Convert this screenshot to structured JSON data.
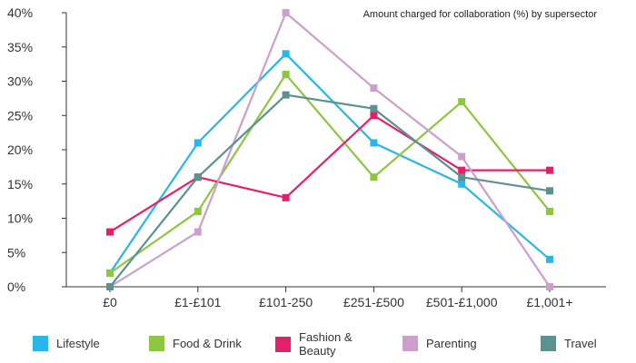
{
  "chart_data": {
    "type": "line",
    "title": "Amount charged for collaboration (%) by supersector",
    "categories": [
      "£0",
      "£1-£101",
      "£101-250",
      "£251-£500",
      "£501-£1,000",
      "£1,001+"
    ],
    "y_ticks": [
      "0%",
      "5%",
      "10%",
      "15%",
      "20%",
      "25%",
      "30%",
      "35%",
      "40%"
    ],
    "ylim": [
      0,
      40
    ],
    "grid": false,
    "legend_position": "bottom",
    "series": [
      {
        "name": "Lifestyle",
        "color": "#29b6e8",
        "values": [
          2,
          21,
          34,
          21,
          15,
          4
        ]
      },
      {
        "name": "Food & Drink",
        "color": "#8dc63f",
        "values": [
          2,
          11,
          31,
          16,
          27,
          11
        ]
      },
      {
        "name": "Fashion & Beauty",
        "color": "#e5206b",
        "values": [
          8,
          16,
          13,
          25,
          17,
          17
        ]
      },
      {
        "name": "Parenting",
        "color": "#cc9fcc",
        "values": [
          0,
          8,
          40,
          29,
          19,
          0
        ]
      },
      {
        "name": "Travel",
        "color": "#5b9191",
        "values": [
          0,
          16,
          28,
          26,
          16,
          14
        ]
      }
    ]
  }
}
